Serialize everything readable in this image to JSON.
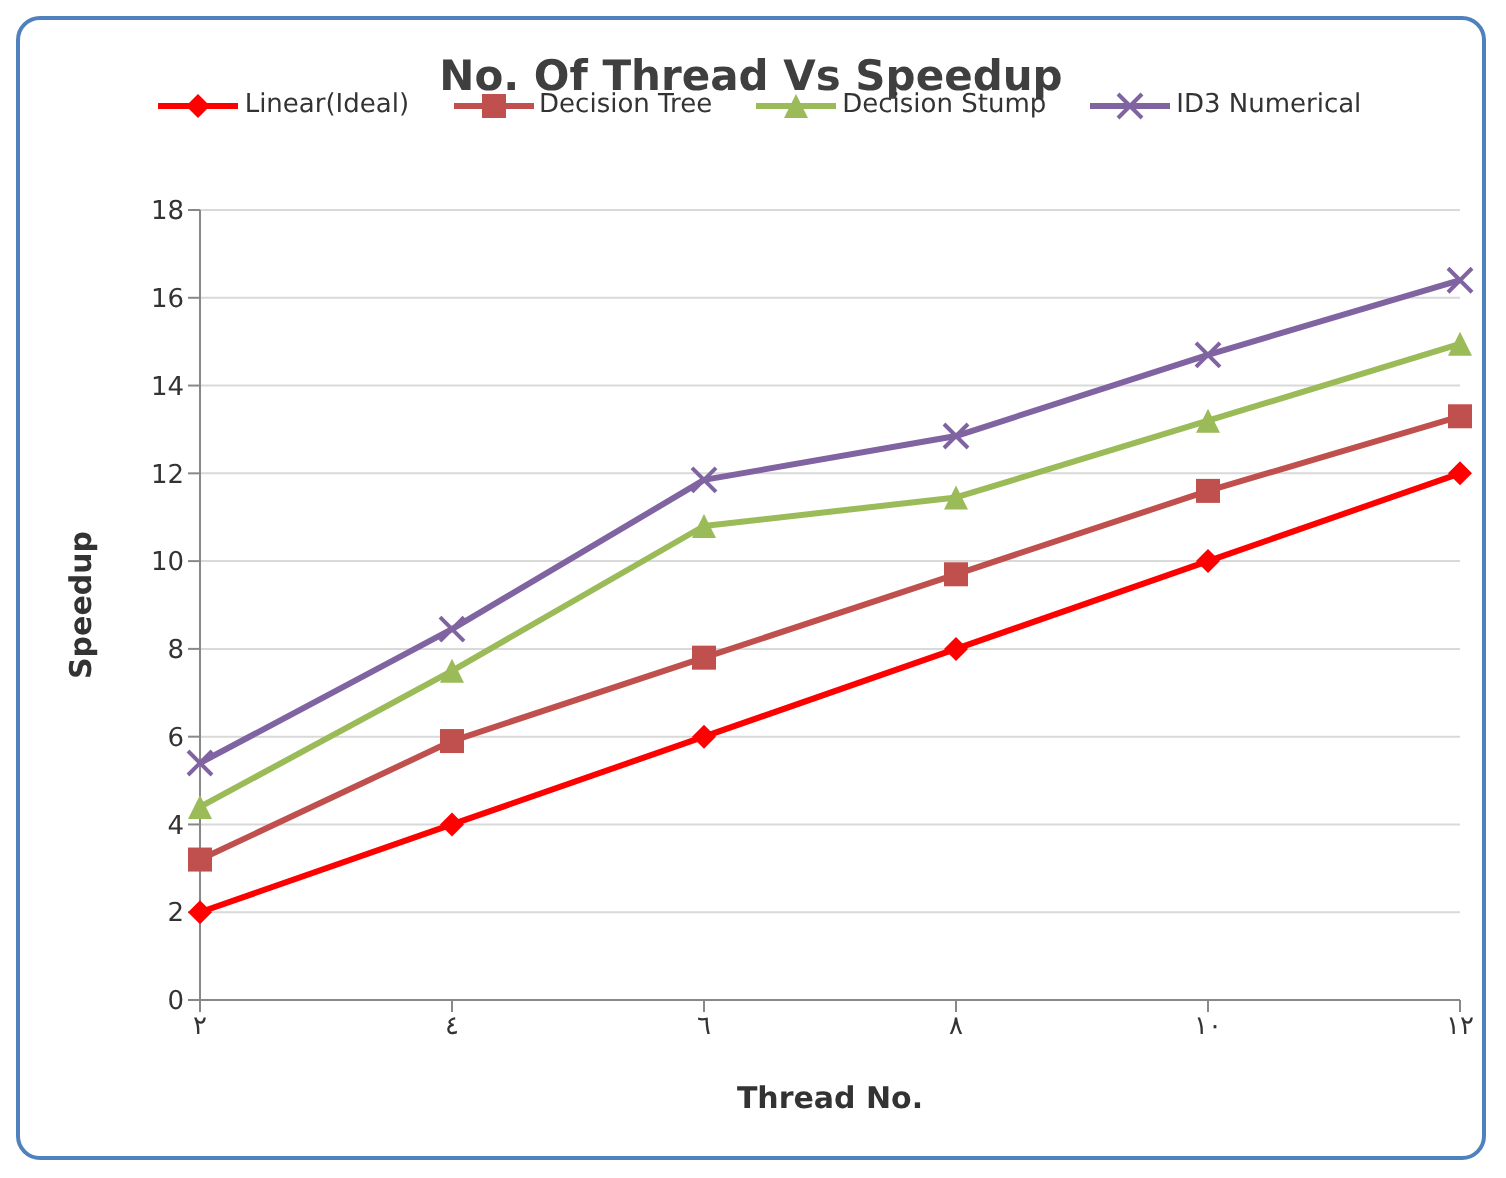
{
  "chart_data": {
    "type": "line",
    "title": "No. Of Thread Vs Speedup",
    "xlabel": "Thread No.",
    "ylabel": "Speedup",
    "categories": [
      "٢",
      "٤",
      "٦",
      "٨",
      "١٠",
      "١٢"
    ],
    "series": [
      {
        "name": "Linear(Ideal)",
        "color": "#ff0000",
        "marker": "diamond",
        "values": [
          2,
          4,
          6,
          8,
          10,
          12
        ]
      },
      {
        "name": "Decision Tree",
        "color": "#c0504d",
        "marker": "square",
        "values": [
          3.2,
          5.9,
          7.8,
          9.7,
          11.6,
          13.3
        ]
      },
      {
        "name": "Decision Stump",
        "color": "#9bbb59",
        "marker": "triangle",
        "values": [
          4.4,
          7.5,
          10.8,
          11.45,
          13.2,
          14.95
        ]
      },
      {
        "name": "ID3 Numerical",
        "color": "#8064a2",
        "marker": "cross",
        "values": [
          5.4,
          8.45,
          11.85,
          12.85,
          14.7,
          16.4
        ]
      }
    ],
    "ylim": [
      0,
      18
    ],
    "yticks": [
      0,
      2,
      4,
      6,
      8,
      10,
      12,
      14,
      16,
      18
    ],
    "grid": "y",
    "legend": "top"
  }
}
